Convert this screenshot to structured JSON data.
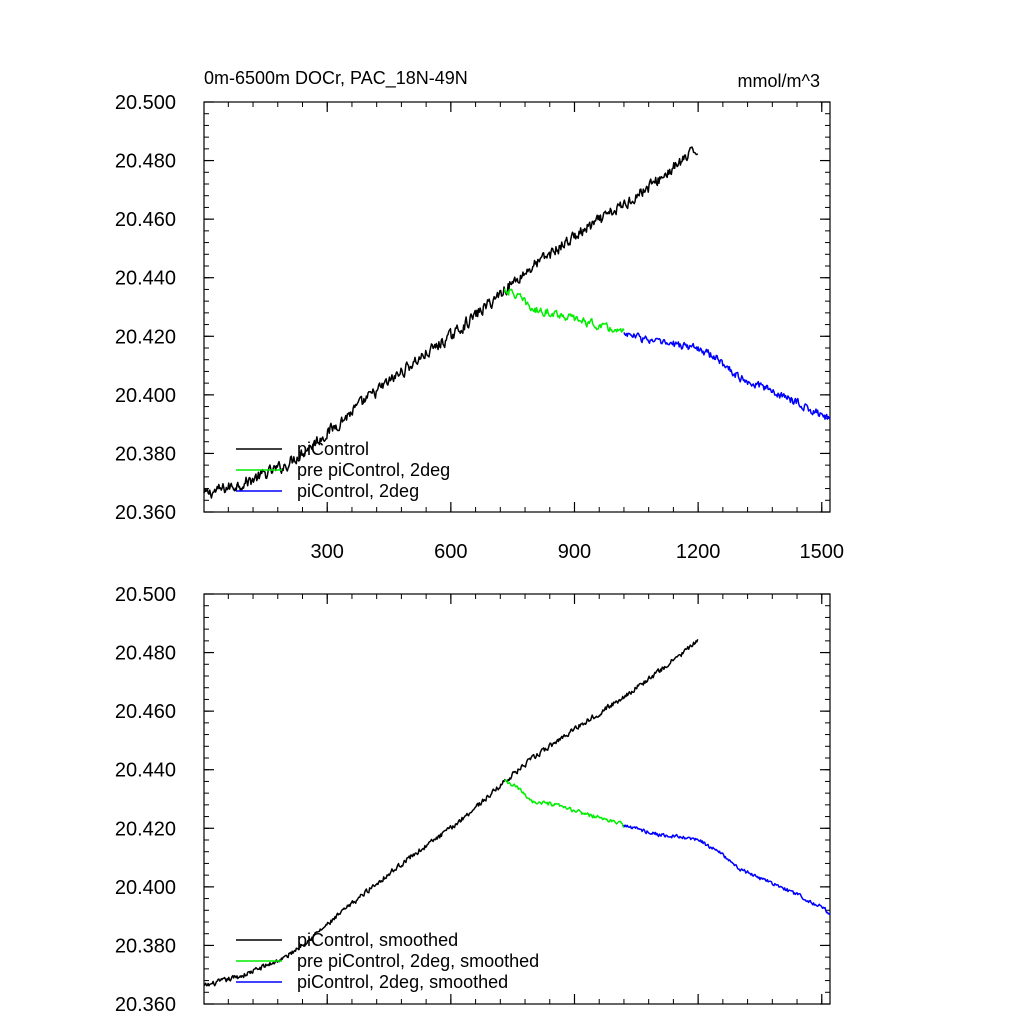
{
  "figure": {
    "title": "0m-6500m DOCr, PAC_18N-49N",
    "units": "mmol/m^3"
  },
  "chart_data": [
    {
      "type": "line",
      "title": "0m-6500m DOCr, PAC_18N-49N",
      "units": "mmol/m^3",
      "xlim": [
        1,
        1520
      ],
      "ylim": [
        20.36,
        20.5
      ],
      "x_ticks": [
        300,
        600,
        900,
        1200,
        1500
      ],
      "x_tick_labels": [
        "300",
        "600",
        "900",
        "1200",
        "1500"
      ],
      "y_ticks": [
        20.36,
        20.38,
        20.4,
        20.42,
        20.44,
        20.46,
        20.48,
        20.5
      ],
      "y_tick_labels": [
        "20.360",
        "20.380",
        "20.400",
        "20.420",
        "20.440",
        "20.460",
        "20.480",
        "20.500"
      ],
      "legend_position": "bottom-left",
      "series": [
        {
          "name": "piControl",
          "color": "#000000",
          "noise": 0.0018,
          "x": [
            1,
            100,
            200,
            300,
            400,
            500,
            600,
            700,
            730,
            800,
            900,
            1000,
            1100,
            1200
          ],
          "y": [
            20.366,
            20.37,
            20.376,
            20.387,
            20.399,
            20.41,
            20.42,
            20.432,
            20.436,
            20.444,
            20.454,
            20.463,
            20.473,
            20.484
          ]
        },
        {
          "name": "pre piControl, 2deg",
          "color": "#00ee00",
          "noise": 0.0012,
          "x": [
            730,
            760,
            800,
            850,
            900,
            950,
            1000,
            1020
          ],
          "y": [
            20.436,
            20.434,
            20.429,
            20.428,
            20.426,
            20.424,
            20.422,
            20.421
          ]
        },
        {
          "name": "piControl, 2deg",
          "color": "#0000ff",
          "noise": 0.0012,
          "x": [
            1020,
            1100,
            1200,
            1250,
            1300,
            1400,
            1460,
            1500,
            1520
          ],
          "y": [
            20.421,
            20.418,
            20.416,
            20.412,
            20.406,
            20.4,
            20.396,
            20.393,
            20.391
          ]
        }
      ]
    },
    {
      "type": "line",
      "xlim": [
        1,
        1520
      ],
      "ylim": [
        20.36,
        20.5
      ],
      "x_ticks": [
        300,
        600,
        900,
        1200,
        1500
      ],
      "x_tick_labels": [],
      "y_ticks": [
        20.36,
        20.38,
        20.4,
        20.42,
        20.44,
        20.46,
        20.48,
        20.5
      ],
      "y_tick_labels": [
        "20.360",
        "20.380",
        "20.400",
        "20.420",
        "20.440",
        "20.460",
        "20.480",
        "20.500"
      ],
      "legend_position": "bottom-left",
      "series": [
        {
          "name": "piControl, smoothed",
          "color": "#000000",
          "noise": 0.0008,
          "x": [
            1,
            100,
            200,
            300,
            400,
            500,
            600,
            700,
            730,
            800,
            900,
            1000,
            1100,
            1200
          ],
          "y": [
            20.366,
            20.37,
            20.376,
            20.387,
            20.399,
            20.41,
            20.42,
            20.432,
            20.436,
            20.444,
            20.454,
            20.463,
            20.473,
            20.484
          ]
        },
        {
          "name": "pre piControl, 2deg, smoothed",
          "color": "#00ee00",
          "noise": 0.0006,
          "x": [
            730,
            760,
            800,
            850,
            900,
            950,
            1000,
            1020
          ],
          "y": [
            20.436,
            20.434,
            20.429,
            20.428,
            20.426,
            20.424,
            20.422,
            20.421
          ]
        },
        {
          "name": "piControl, 2deg, smoothed",
          "color": "#0000ff",
          "noise": 0.0006,
          "x": [
            1020,
            1100,
            1200,
            1250,
            1300,
            1400,
            1460,
            1500,
            1520
          ],
          "y": [
            20.421,
            20.418,
            20.416,
            20.412,
            20.406,
            20.4,
            20.396,
            20.393,
            20.391
          ]
        }
      ]
    }
  ]
}
